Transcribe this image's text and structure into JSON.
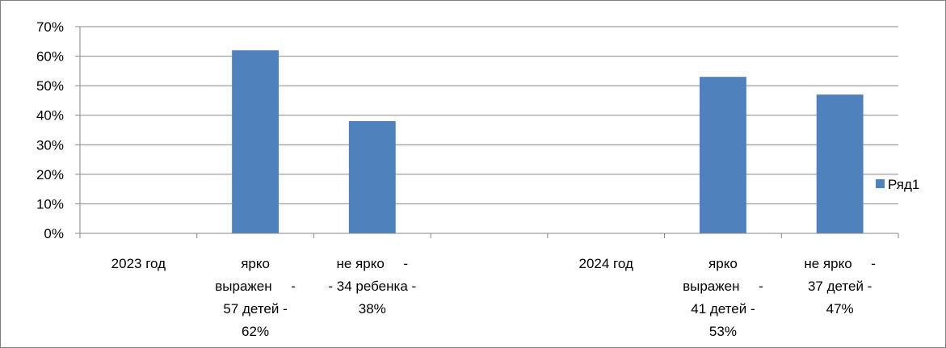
{
  "chart_data": {
    "type": "bar",
    "categories": [
      [
        "2023 год"
      ],
      [
        "ярко",
        "выражен     -",
        "57 детей -",
        "62%"
      ],
      [
        "не ярко     -",
        "- 34 ребенка -",
        "38%"
      ],
      [
        ""
      ],
      [
        "2024 год"
      ],
      [
        "ярко",
        "выражен     -",
        "41 детей -",
        "53%"
      ],
      [
        "не ярко     -",
        "37 детей -",
        "47%"
      ]
    ],
    "series": [
      {
        "name": "Ряд1",
        "values": [
          null,
          0.62,
          0.38,
          null,
          null,
          0.53,
          0.47
        ]
      }
    ],
    "ylim": [
      0,
      0.7
    ],
    "yticks": [
      "0%",
      "10%",
      "20%",
      "30%",
      "40%",
      "50%",
      "60%",
      "70%"
    ],
    "grid": true,
    "legend": "right",
    "colors": {
      "bar": "#4f81bd",
      "grid": "#868686",
      "axis": "#868686"
    }
  }
}
